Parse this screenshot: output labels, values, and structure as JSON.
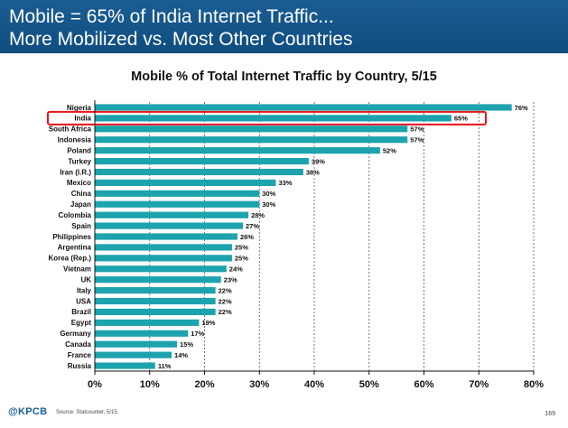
{
  "header": {
    "line1": "Mobile = 65% of India Internet Traffic...",
    "line2": "More Mobilized vs. Most Other Countries"
  },
  "chart_data": {
    "type": "bar",
    "orientation": "horizontal",
    "title": "Mobile % of Total Internet Traffic by Country, 5/15",
    "categories": [
      "Nigeria",
      "India",
      "South Africa",
      "Indonesia",
      "Poland",
      "Turkey",
      "Iran (I.R.)",
      "Mexico",
      "China",
      "Japan",
      "Colombia",
      "Spain",
      "Philippines",
      "Argentina",
      "Korea (Rep.)",
      "Vietnam",
      "UK",
      "Italy",
      "USA",
      "Brazil",
      "Egypt",
      "Germany",
      "Canada",
      "France",
      "Russia"
    ],
    "values": [
      76,
      65,
      57,
      57,
      52,
      39,
      38,
      33,
      30,
      30,
      28,
      27,
      26,
      25,
      25,
      24,
      23,
      22,
      22,
      22,
      19,
      17,
      15,
      14,
      11
    ],
    "value_labels": [
      "76%",
      "65%",
      "57%",
      "57%",
      "52%",
      "39%",
      "38%",
      "33%",
      "30%",
      "30%",
      "28%",
      "27%",
      "26%",
      "25%",
      "25%",
      "24%",
      "23%",
      "22%",
      "22%",
      "22%",
      "19%",
      "17%",
      "15%",
      "14%",
      "11%"
    ],
    "xlim": [
      0,
      80
    ],
    "x_ticks": [
      "0%",
      "10%",
      "20%",
      "30%",
      "40%",
      "50%",
      "60%",
      "70%",
      "80%"
    ],
    "highlighted_category": "India",
    "bar_color": "#1ca3ad",
    "highlight_color": "#e8141c",
    "grid": "vertical dashed"
  },
  "footer": {
    "logo": "@KPCB",
    "source": "Source: Statcounter, 5/15.",
    "page_number": "169"
  }
}
